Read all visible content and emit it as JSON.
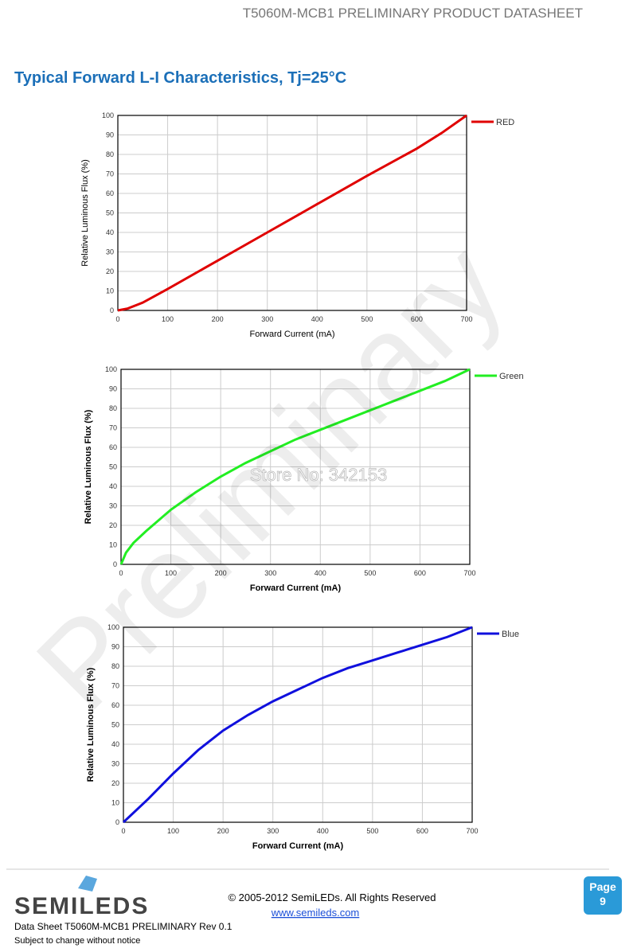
{
  "header": "T5060M-MCB1 PRELIMINARY PRODUCT DATASHEET",
  "title": "Typical Forward L-I Characteristics, Tj=25°C",
  "watermark": "Preliminary",
  "store_mark": "Store No: 342153",
  "chart_data": [
    {
      "type": "line",
      "xlabel": "Forward Current (mA)",
      "ylabel": "Relative Luminous Flux (%)",
      "x": [
        0,
        20,
        50,
        100,
        200,
        300,
        400,
        500,
        600,
        650,
        700
      ],
      "series": [
        {
          "name": "RED",
          "color": "#e00000",
          "values": [
            0,
            1,
            4,
            11,
            25.5,
            40,
            54.5,
            69,
            83,
            91,
            100
          ]
        }
      ],
      "xlim": [
        0,
        700
      ],
      "ylim": [
        0,
        100
      ],
      "xticks": [
        0,
        100,
        200,
        300,
        400,
        500,
        600,
        700
      ],
      "yticks": [
        0,
        10,
        20,
        30,
        40,
        50,
        60,
        70,
        80,
        90,
        100
      ],
      "grid": true
    },
    {
      "type": "line",
      "xlabel": "Forward Current (mA)",
      "ylabel": "Relative Luminous Flux (%)",
      "x": [
        0,
        10,
        25,
        50,
        100,
        150,
        200,
        250,
        300,
        350,
        400,
        450,
        500,
        550,
        600,
        650,
        700
      ],
      "series": [
        {
          "name": "Green",
          "color": "#22ee22",
          "values": [
            0,
            6,
            11,
            17,
            28,
            37,
            45,
            52,
            58,
            64,
            69,
            74,
            79,
            84,
            89,
            94,
            100
          ]
        }
      ],
      "xlim": [
        0,
        700
      ],
      "ylim": [
        0,
        100
      ],
      "xticks": [
        0,
        100,
        200,
        300,
        400,
        500,
        600,
        700
      ],
      "yticks": [
        0,
        10,
        20,
        30,
        40,
        50,
        60,
        70,
        80,
        90,
        100
      ],
      "grid": true
    },
    {
      "type": "line",
      "xlabel": "Forward Current (mA)",
      "ylabel": "Relative Luminous Flux (%)",
      "x": [
        0,
        50,
        100,
        150,
        200,
        250,
        300,
        350,
        400,
        450,
        500,
        550,
        600,
        650,
        700
      ],
      "series": [
        {
          "name": "Blue",
          "color": "#1010dd",
          "values": [
            0,
            12,
            25,
            37,
            47,
            55,
            62,
            68,
            74,
            79,
            83,
            87,
            91,
            95,
            100
          ]
        }
      ],
      "xlim": [
        0,
        700
      ],
      "ylim": [
        0,
        100
      ],
      "xticks": [
        0,
        100,
        200,
        300,
        400,
        500,
        600,
        700
      ],
      "yticks": [
        0,
        10,
        20,
        30,
        40,
        50,
        60,
        70,
        80,
        90,
        100
      ],
      "grid": true
    }
  ],
  "footer": {
    "logo": "SEMILEDS",
    "copyright": "© 2005-2012 SemiLEDs. All Rights Reserved",
    "url": "www.semileds.com",
    "page_label": "Page",
    "page_number": 9,
    "doc": "Data Sheet T5060M-MCB1 PRELIMINARY Rev 0.1",
    "notice": "Subject to change without notice"
  }
}
